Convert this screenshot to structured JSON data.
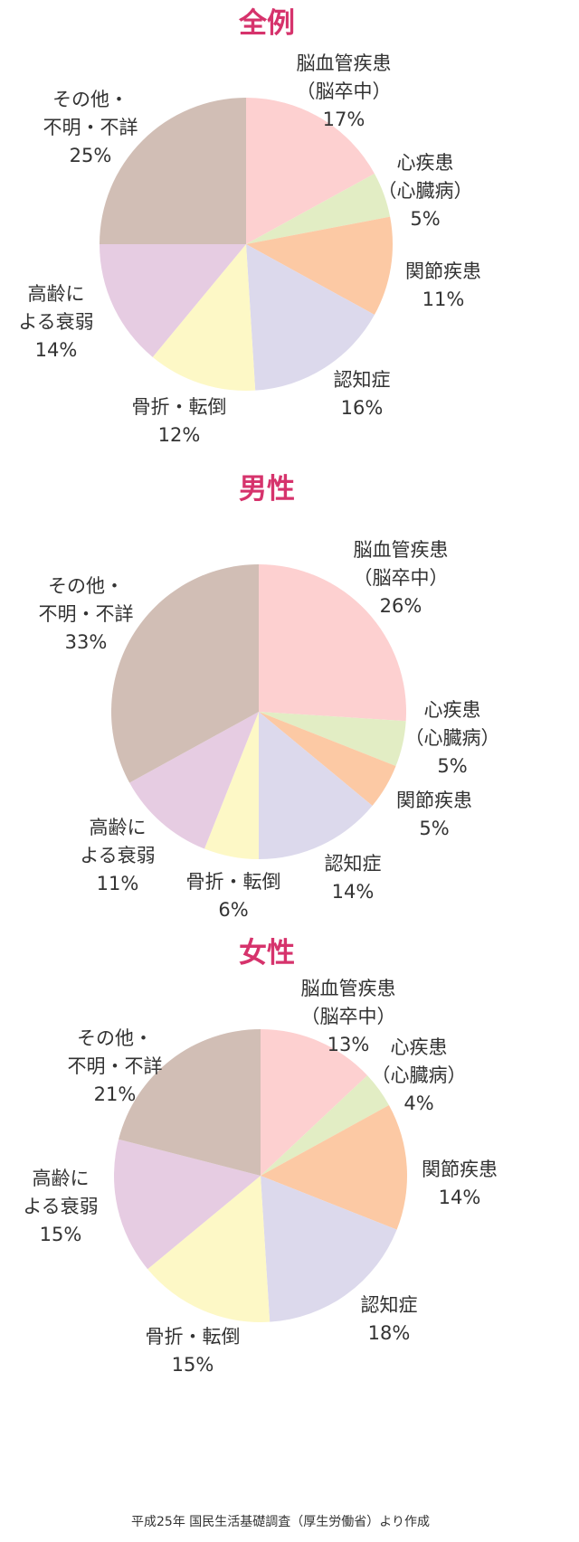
{
  "source_note": "平成25年 国民生活基礎調査（厚生労働省）より作成",
  "chart_data": [
    {
      "type": "pie",
      "title": "全例",
      "slices": [
        {
          "label_lines": [
            "脳血管疾患",
            "（脳卒中）"
          ],
          "value": 17,
          "value_text": "17%",
          "color": "#fdd0d0"
        },
        {
          "label_lines": [
            "心疾患",
            "（心臓病）"
          ],
          "value": 5,
          "value_text": "5%",
          "color": "#e2edc4"
        },
        {
          "label_lines": [
            "関節疾患"
          ],
          "value": 11,
          "value_text": "11%",
          "color": "#fcc9a4"
        },
        {
          "label_lines": [
            "認知症"
          ],
          "value": 16,
          "value_text": "16%",
          "color": "#dcd9ec"
        },
        {
          "label_lines": [
            "骨折・転倒"
          ],
          "value": 12,
          "value_text": "12%",
          "color": "#fdf8c6"
        },
        {
          "label_lines": [
            "高齢に",
            "よる衰弱"
          ],
          "value": 14,
          "value_text": "14%",
          "color": "#e6cce2"
        },
        {
          "label_lines": [
            "その他・",
            "不明・不詳"
          ],
          "value": 25,
          "value_text": "25%",
          "color": "#d1beb5"
        }
      ]
    },
    {
      "type": "pie",
      "title": "男性",
      "slices": [
        {
          "label_lines": [
            "脳血管疾患",
            "（脳卒中）"
          ],
          "value": 26,
          "value_text": "26%",
          "color": "#fdd0d0"
        },
        {
          "label_lines": [
            "心疾患",
            "（心臓病）"
          ],
          "value": 5,
          "value_text": "5%",
          "color": "#e2edc4"
        },
        {
          "label_lines": [
            "関節疾患"
          ],
          "value": 5,
          "value_text": "5%",
          "color": "#fcc9a4"
        },
        {
          "label_lines": [
            "認知症"
          ],
          "value": 14,
          "value_text": "14%",
          "color": "#dcd9ec"
        },
        {
          "label_lines": [
            "骨折・転倒"
          ],
          "value": 6,
          "value_text": "6%",
          "color": "#fdf8c6"
        },
        {
          "label_lines": [
            "高齢に",
            "よる衰弱"
          ],
          "value": 11,
          "value_text": "11%",
          "color": "#e6cce2"
        },
        {
          "label_lines": [
            "その他・",
            "不明・不詳"
          ],
          "value": 33,
          "value_text": "33%",
          "color": "#d1beb5"
        }
      ]
    },
    {
      "type": "pie",
      "title": "女性",
      "slices": [
        {
          "label_lines": [
            "脳血管疾患",
            "（脳卒中）"
          ],
          "value": 13,
          "value_text": "13%",
          "color": "#fdd0d0"
        },
        {
          "label_lines": [
            "心疾患",
            "（心臓病）"
          ],
          "value": 4,
          "value_text": "4%",
          "color": "#e2edc4"
        },
        {
          "label_lines": [
            "関節疾患"
          ],
          "value": 14,
          "value_text": "14%",
          "color": "#fcc9a4"
        },
        {
          "label_lines": [
            "認知症"
          ],
          "value": 18,
          "value_text": "18%",
          "color": "#dcd9ec"
        },
        {
          "label_lines": [
            "骨折・転倒"
          ],
          "value": 15,
          "value_text": "15%",
          "color": "#fdf8c6"
        },
        {
          "label_lines": [
            "高齢に",
            "よる衰弱"
          ],
          "value": 15,
          "value_text": "15%",
          "color": "#e6cce2"
        },
        {
          "label_lines": [
            "その他・",
            "不明・不詳"
          ],
          "value": 21,
          "value_text": "21%",
          "color": "#d1beb5"
        }
      ]
    }
  ]
}
